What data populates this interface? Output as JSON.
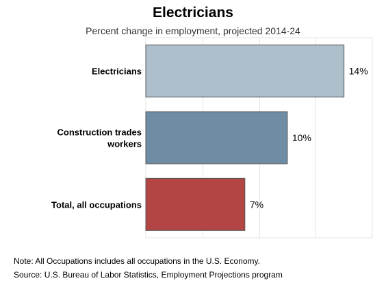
{
  "chart_data": {
    "type": "bar",
    "orientation": "horizontal",
    "title": "Electricians",
    "subtitle": "Percent change in employment, projected 2014-24",
    "categories": [
      [
        "Electricians"
      ],
      [
        "Construction trades",
        "workers"
      ],
      [
        "Total, all occupations"
      ]
    ],
    "values": [
      14,
      10,
      7
    ],
    "value_labels": [
      "14%",
      "10%",
      "7%"
    ],
    "bar_colors": [
      "#adbfcb",
      "#6e8da4",
      "#b44545"
    ],
    "xlim": [
      0,
      16
    ],
    "grid": true
  },
  "notes": {
    "note": "Note: All Occupations includes all occupations in the U.S. Economy.",
    "source": "Source: U.S. Bureau of Labor Statistics, Employment Projections program"
  }
}
